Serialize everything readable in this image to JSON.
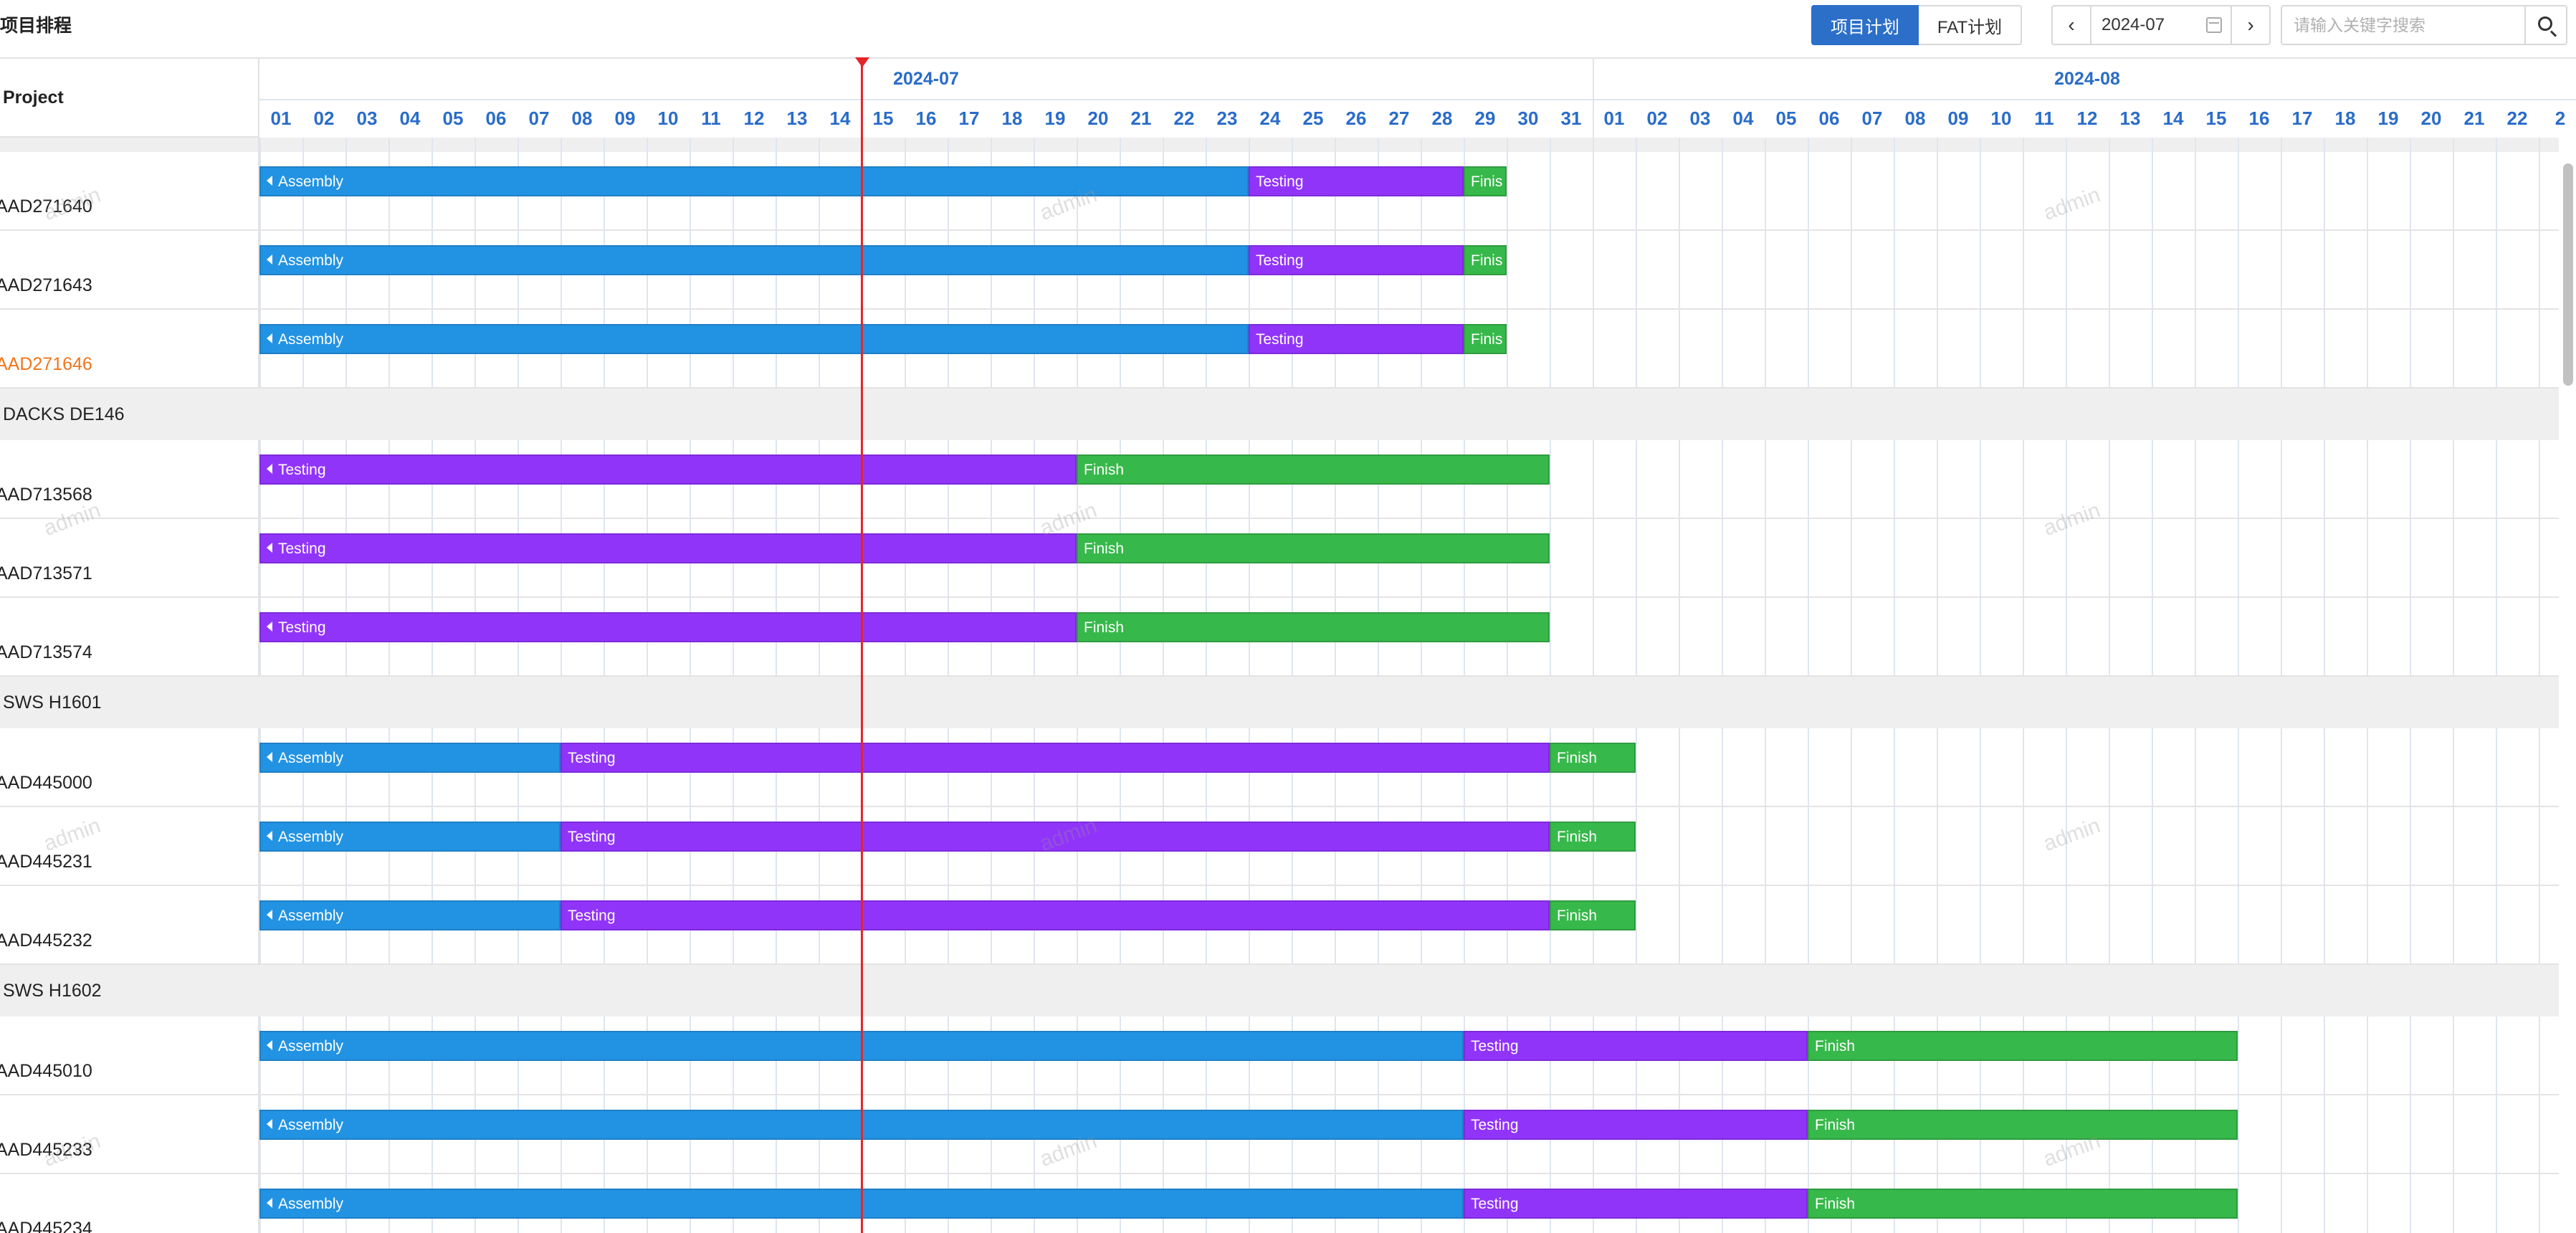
{
  "app": {
    "title": "项目排程"
  },
  "toolbar": {
    "plan_tabs": [
      "项目计划",
      "FAT计划"
    ],
    "active_tab": "项目计划",
    "prev_label": "‹",
    "next_label": "›",
    "date_value": "2024-07",
    "search_placeholder": "请输入关键字搜索",
    "icons": [
      "calendar-icon",
      "search-icon"
    ]
  },
  "header": {
    "project_label": "Project",
    "months": [
      "2024-07",
      "2024-08"
    ],
    "days": [
      "01",
      "02",
      "03",
      "04",
      "05",
      "06",
      "07",
      "08",
      "09",
      "10",
      "11",
      "12",
      "13",
      "14",
      "15",
      "16",
      "17",
      "18",
      "19",
      "20",
      "21",
      "22",
      "23",
      "24",
      "25",
      "26",
      "27",
      "28",
      "29",
      "30",
      "31",
      "01",
      "02",
      "03",
      "04",
      "05",
      "06",
      "07",
      "08",
      "09",
      "10",
      "11",
      "12",
      "13",
      "14",
      "15",
      "16",
      "17",
      "18",
      "19",
      "20",
      "21",
      "22",
      "2"
    ]
  },
  "colors": {
    "Assembly": "#2293e3",
    "Testing": "#9134fa",
    "Finish": "#37b84a",
    "today": "#e5252a",
    "accent": "#2a6cc9",
    "highlight_text": "#f0761b"
  },
  "watermark": "admin",
  "rows": [
    {
      "type": "item",
      "label": "AAD271640",
      "bars": [
        {
          "phase": "Assembly",
          "label": "Assembly",
          "start": 1,
          "end": 24
        },
        {
          "phase": "Testing",
          "label": "Testing",
          "start": 24,
          "end": 29
        },
        {
          "phase": "Finish",
          "label": "Finis",
          "start": 29,
          "end": 30
        }
      ]
    },
    {
      "type": "item",
      "label": "AAD271643",
      "bars": [
        {
          "phase": "Assembly",
          "label": "Assembly",
          "start": 1,
          "end": 24
        },
        {
          "phase": "Testing",
          "label": "Testing",
          "start": 24,
          "end": 29
        },
        {
          "phase": "Finish",
          "label": "Finis",
          "start": 29,
          "end": 30
        }
      ]
    },
    {
      "type": "item",
      "label": "AAD271646",
      "highlight": true,
      "bars": [
        {
          "phase": "Assembly",
          "label": "Assembly",
          "start": 1,
          "end": 24
        },
        {
          "phase": "Testing",
          "label": "Testing",
          "start": 24,
          "end": 29
        },
        {
          "phase": "Finish",
          "label": "Finis",
          "start": 29,
          "end": 30
        }
      ]
    },
    {
      "type": "group",
      "label": "DACKS DE146"
    },
    {
      "type": "item",
      "label": "AAD713568",
      "bars": [
        {
          "phase": "Testing",
          "label": "Testing",
          "start": 1,
          "end": 20
        },
        {
          "phase": "Finish",
          "label": "Finish",
          "start": 20,
          "end": 31
        }
      ]
    },
    {
      "type": "item",
      "label": "AAD713571",
      "bars": [
        {
          "phase": "Testing",
          "label": "Testing",
          "start": 1,
          "end": 20
        },
        {
          "phase": "Finish",
          "label": "Finish",
          "start": 20,
          "end": 31
        }
      ]
    },
    {
      "type": "item",
      "label": "AAD713574",
      "bars": [
        {
          "phase": "Testing",
          "label": "Testing",
          "start": 1,
          "end": 20
        },
        {
          "phase": "Finish",
          "label": "Finish",
          "start": 20,
          "end": 31
        }
      ]
    },
    {
      "type": "group",
      "label": "SWS H1601"
    },
    {
      "type": "item",
      "label": "AAD445000",
      "bars": [
        {
          "phase": "Assembly",
          "label": "Assembly",
          "start": 1,
          "end": 8
        },
        {
          "phase": "Testing",
          "label": "Testing",
          "start": 8,
          "end": 31
        },
        {
          "phase": "Finish",
          "label": "Finish",
          "start": 31,
          "end": 33
        }
      ]
    },
    {
      "type": "item",
      "label": "AAD445231",
      "bars": [
        {
          "phase": "Assembly",
          "label": "Assembly",
          "start": 1,
          "end": 8
        },
        {
          "phase": "Testing",
          "label": "Testing",
          "start": 8,
          "end": 31
        },
        {
          "phase": "Finish",
          "label": "Finish",
          "start": 31,
          "end": 33
        }
      ]
    },
    {
      "type": "item",
      "label": "AAD445232",
      "bars": [
        {
          "phase": "Assembly",
          "label": "Assembly",
          "start": 1,
          "end": 8
        },
        {
          "phase": "Testing",
          "label": "Testing",
          "start": 8,
          "end": 31
        },
        {
          "phase": "Finish",
          "label": "Finish",
          "start": 31,
          "end": 33
        }
      ]
    },
    {
      "type": "group",
      "label": "SWS H1602"
    },
    {
      "type": "item",
      "label": "AAD445010",
      "bars": [
        {
          "phase": "Assembly",
          "label": "Assembly",
          "start": 1,
          "end": 29
        },
        {
          "phase": "Testing",
          "label": "Testing",
          "start": 29,
          "end": 37
        },
        {
          "phase": "Finish",
          "label": "Finish",
          "start": 37,
          "end": 47
        }
      ]
    },
    {
      "type": "item",
      "label": "AAD445233",
      "bars": [
        {
          "phase": "Assembly",
          "label": "Assembly",
          "start": 1,
          "end": 29
        },
        {
          "phase": "Testing",
          "label": "Testing",
          "start": 29,
          "end": 37
        },
        {
          "phase": "Finish",
          "label": "Finish",
          "start": 37,
          "end": 47
        }
      ]
    },
    {
      "type": "item",
      "label": "AAD445234",
      "bars": [
        {
          "phase": "Assembly",
          "label": "Assembly",
          "start": 1,
          "end": 29
        },
        {
          "phase": "Testing",
          "label": "Testing",
          "start": 29,
          "end": 37
        },
        {
          "phase": "Finish",
          "label": "Finish",
          "start": 37,
          "end": 47
        }
      ]
    }
  ]
}
